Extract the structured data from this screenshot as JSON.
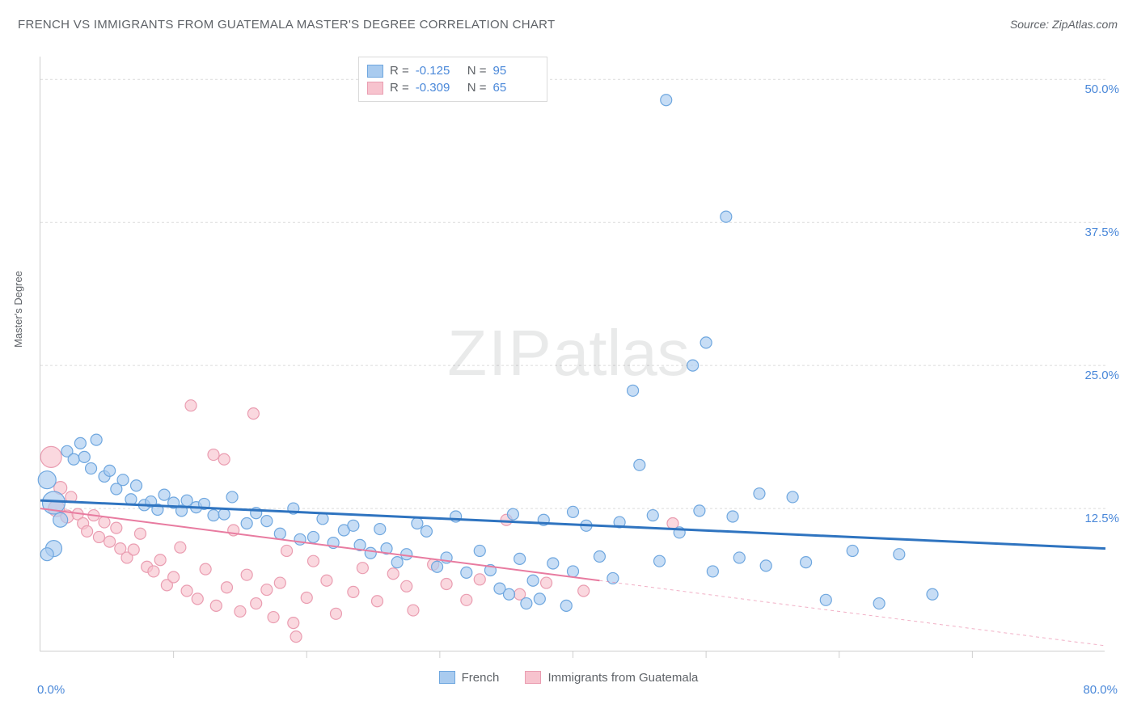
{
  "title": "FRENCH VS IMMIGRANTS FROM GUATEMALA MASTER'S DEGREE CORRELATION CHART",
  "source": "Source: ZipAtlas.com",
  "watermark_bold": "ZIP",
  "watermark_rest": "atlas",
  "chart": {
    "type": "scatter",
    "ylabel": "Master's Degree",
    "xlim": [
      0,
      80
    ],
    "ylim": [
      0,
      52
    ],
    "ytick_positions": [
      12.5,
      25,
      37.5,
      50
    ],
    "ytick_labels": [
      "12.5%",
      "25.0%",
      "37.5%",
      "50.0%"
    ],
    "xtick_positions": [
      10,
      20,
      30,
      40,
      50,
      60,
      70
    ],
    "x_start_label": "0.0%",
    "x_end_label": "80.0%",
    "background_color": "#ffffff",
    "grid_color": "#dcdcdc",
    "axis_color": "#cfcfcf",
    "axis_label_color": "#4a88d9",
    "text_color": "#5f6368",
    "series": [
      {
        "name": "French",
        "color_fill": "#a9cbef",
        "color_stroke": "#6fa7df",
        "line_color": "#2f74c0",
        "line_width": 3,
        "R": "-0.125",
        "N": "95",
        "trend": {
          "x1": 0,
          "y1": 13.2,
          "x2": 80,
          "y2": 9.0,
          "solid_until_x": 80
        },
        "points": [
          {
            "x": 0.5,
            "y": 15.0,
            "r": 11
          },
          {
            "x": 1.0,
            "y": 13.0,
            "r": 14
          },
          {
            "x": 1.5,
            "y": 11.5,
            "r": 9
          },
          {
            "x": 2.0,
            "y": 17.5,
            "r": 7
          },
          {
            "x": 2.5,
            "y": 16.8,
            "r": 7
          },
          {
            "x": 3.0,
            "y": 18.2,
            "r": 7
          },
          {
            "x": 3.3,
            "y": 17.0,
            "r": 7
          },
          {
            "x": 3.8,
            "y": 16.0,
            "r": 7
          },
          {
            "x": 4.2,
            "y": 18.5,
            "r": 7
          },
          {
            "x": 4.8,
            "y": 15.3,
            "r": 7
          },
          {
            "x": 5.2,
            "y": 15.8,
            "r": 7
          },
          {
            "x": 5.7,
            "y": 14.2,
            "r": 7
          },
          {
            "x": 1.0,
            "y": 9.0,
            "r": 10
          },
          {
            "x": 0.5,
            "y": 8.5,
            "r": 8
          },
          {
            "x": 6.2,
            "y": 15.0,
            "r": 7
          },
          {
            "x": 6.8,
            "y": 13.3,
            "r": 7
          },
          {
            "x": 7.2,
            "y": 14.5,
            "r": 7
          },
          {
            "x": 7.8,
            "y": 12.8,
            "r": 7
          },
          {
            "x": 8.3,
            "y": 13.1,
            "r": 7
          },
          {
            "x": 8.8,
            "y": 12.4,
            "r": 7
          },
          {
            "x": 9.3,
            "y": 13.7,
            "r": 7
          },
          {
            "x": 10.0,
            "y": 13.0,
            "r": 7
          },
          {
            "x": 10.6,
            "y": 12.3,
            "r": 7
          },
          {
            "x": 11.0,
            "y": 13.2,
            "r": 7
          },
          {
            "x": 11.7,
            "y": 12.6,
            "r": 7
          },
          {
            "x": 12.3,
            "y": 12.9,
            "r": 7
          },
          {
            "x": 13.0,
            "y": 11.9,
            "r": 7
          },
          {
            "x": 13.8,
            "y": 12.0,
            "r": 7
          },
          {
            "x": 14.4,
            "y": 13.5,
            "r": 7
          },
          {
            "x": 15.5,
            "y": 11.2,
            "r": 7
          },
          {
            "x": 16.2,
            "y": 12.1,
            "r": 7
          },
          {
            "x": 17.0,
            "y": 11.4,
            "r": 7
          },
          {
            "x": 18.0,
            "y": 10.3,
            "r": 7
          },
          {
            "x": 19.0,
            "y": 12.5,
            "r": 7
          },
          {
            "x": 19.5,
            "y": 9.8,
            "r": 7
          },
          {
            "x": 20.5,
            "y": 10.0,
            "r": 7
          },
          {
            "x": 21.2,
            "y": 11.6,
            "r": 7
          },
          {
            "x": 22.0,
            "y": 9.5,
            "r": 7
          },
          {
            "x": 22.8,
            "y": 10.6,
            "r": 7
          },
          {
            "x": 23.5,
            "y": 11.0,
            "r": 7
          },
          {
            "x": 24.0,
            "y": 9.3,
            "r": 7
          },
          {
            "x": 24.8,
            "y": 8.6,
            "r": 7
          },
          {
            "x": 25.5,
            "y": 10.7,
            "r": 7
          },
          {
            "x": 26.0,
            "y": 9.0,
            "r": 7
          },
          {
            "x": 26.8,
            "y": 7.8,
            "r": 7
          },
          {
            "x": 27.5,
            "y": 8.5,
            "r": 7
          },
          {
            "x": 28.3,
            "y": 11.2,
            "r": 7
          },
          {
            "x": 29.0,
            "y": 10.5,
            "r": 7
          },
          {
            "x": 29.8,
            "y": 7.4,
            "r": 7
          },
          {
            "x": 30.5,
            "y": 8.2,
            "r": 7
          },
          {
            "x": 31.2,
            "y": 11.8,
            "r": 7
          },
          {
            "x": 32.0,
            "y": 6.9,
            "r": 7
          },
          {
            "x": 33.0,
            "y": 8.8,
            "r": 7
          },
          {
            "x": 33.8,
            "y": 7.1,
            "r": 7
          },
          {
            "x": 34.5,
            "y": 5.5,
            "r": 7
          },
          {
            "x": 35.2,
            "y": 5.0,
            "r": 7
          },
          {
            "x": 35.5,
            "y": 12.0,
            "r": 7
          },
          {
            "x": 36.0,
            "y": 8.1,
            "r": 7
          },
          {
            "x": 36.5,
            "y": 4.2,
            "r": 7
          },
          {
            "x": 37.0,
            "y": 6.2,
            "r": 7
          },
          {
            "x": 37.5,
            "y": 4.6,
            "r": 7
          },
          {
            "x": 37.8,
            "y": 11.5,
            "r": 7
          },
          {
            "x": 38.5,
            "y": 7.7,
            "r": 7
          },
          {
            "x": 39.5,
            "y": 4.0,
            "r": 7
          },
          {
            "x": 40.0,
            "y": 7.0,
            "r": 7
          },
          {
            "x": 40.0,
            "y": 12.2,
            "r": 7
          },
          {
            "x": 41.0,
            "y": 11.0,
            "r": 7
          },
          {
            "x": 42.0,
            "y": 8.3,
            "r": 7
          },
          {
            "x": 43.0,
            "y": 6.4,
            "r": 7
          },
          {
            "x": 43.5,
            "y": 11.3,
            "r": 7
          },
          {
            "x": 44.5,
            "y": 22.8,
            "r": 7
          },
          {
            "x": 45.0,
            "y": 16.3,
            "r": 7
          },
          {
            "x": 46.0,
            "y": 11.9,
            "r": 7
          },
          {
            "x": 46.5,
            "y": 7.9,
            "r": 7
          },
          {
            "x": 47.0,
            "y": 48.2,
            "r": 7
          },
          {
            "x": 48.0,
            "y": 10.4,
            "r": 7
          },
          {
            "x": 49.0,
            "y": 25.0,
            "r": 7
          },
          {
            "x": 49.5,
            "y": 12.3,
            "r": 7
          },
          {
            "x": 50.0,
            "y": 27.0,
            "r": 7
          },
          {
            "x": 50.5,
            "y": 7.0,
            "r": 7
          },
          {
            "x": 51.5,
            "y": 38.0,
            "r": 7
          },
          {
            "x": 52.0,
            "y": 11.8,
            "r": 7
          },
          {
            "x": 52.5,
            "y": 8.2,
            "r": 7
          },
          {
            "x": 54.0,
            "y": 13.8,
            "r": 7
          },
          {
            "x": 54.5,
            "y": 7.5,
            "r": 7
          },
          {
            "x": 56.5,
            "y": 13.5,
            "r": 7
          },
          {
            "x": 57.5,
            "y": 7.8,
            "r": 7
          },
          {
            "x": 59.0,
            "y": 4.5,
            "r": 7
          },
          {
            "x": 61.0,
            "y": 8.8,
            "r": 7
          },
          {
            "x": 63.0,
            "y": 4.2,
            "r": 7
          },
          {
            "x": 64.5,
            "y": 8.5,
            "r": 7
          },
          {
            "x": 67.0,
            "y": 5.0,
            "r": 7
          }
        ]
      },
      {
        "name": "Immigrants from Guatemala",
        "color_fill": "#f7c3ce",
        "color_stroke": "#ea9db1",
        "line_color": "#e87ba0",
        "line_width": 2,
        "R": "-0.309",
        "N": "65",
        "trend": {
          "x1": 0,
          "y1": 12.5,
          "x2": 80,
          "y2": 0.5,
          "solid_until_x": 42
        },
        "points": [
          {
            "x": 0.8,
            "y": 17.0,
            "r": 13
          },
          {
            "x": 1.2,
            "y": 12.5,
            "r": 10
          },
          {
            "x": 1.5,
            "y": 14.3,
            "r": 8
          },
          {
            "x": 2.0,
            "y": 11.8,
            "r": 8
          },
          {
            "x": 2.3,
            "y": 13.5,
            "r": 7
          },
          {
            "x": 2.8,
            "y": 12.0,
            "r": 7
          },
          {
            "x": 3.2,
            "y": 11.2,
            "r": 7
          },
          {
            "x": 3.5,
            "y": 10.5,
            "r": 7
          },
          {
            "x": 4.0,
            "y": 11.9,
            "r": 7
          },
          {
            "x": 4.4,
            "y": 10.0,
            "r": 7
          },
          {
            "x": 4.8,
            "y": 11.3,
            "r": 7
          },
          {
            "x": 5.2,
            "y": 9.6,
            "r": 7
          },
          {
            "x": 5.7,
            "y": 10.8,
            "r": 7
          },
          {
            "x": 6.0,
            "y": 9.0,
            "r": 7
          },
          {
            "x": 6.5,
            "y": 8.2,
            "r": 7
          },
          {
            "x": 7.0,
            "y": 8.9,
            "r": 7
          },
          {
            "x": 7.5,
            "y": 10.3,
            "r": 7
          },
          {
            "x": 8.0,
            "y": 7.4,
            "r": 7
          },
          {
            "x": 8.5,
            "y": 7.0,
            "r": 7
          },
          {
            "x": 9.0,
            "y": 8.0,
            "r": 7
          },
          {
            "x": 9.5,
            "y": 5.8,
            "r": 7
          },
          {
            "x": 10.0,
            "y": 6.5,
            "r": 7
          },
          {
            "x": 10.5,
            "y": 9.1,
            "r": 7
          },
          {
            "x": 11.0,
            "y": 5.3,
            "r": 7
          },
          {
            "x": 11.3,
            "y": 21.5,
            "r": 7
          },
          {
            "x": 11.8,
            "y": 4.6,
            "r": 7
          },
          {
            "x": 12.4,
            "y": 7.2,
            "r": 7
          },
          {
            "x": 13.0,
            "y": 17.2,
            "r": 7
          },
          {
            "x": 13.2,
            "y": 4.0,
            "r": 7
          },
          {
            "x": 13.8,
            "y": 16.8,
            "r": 7
          },
          {
            "x": 14.0,
            "y": 5.6,
            "r": 7
          },
          {
            "x": 14.5,
            "y": 10.6,
            "r": 7
          },
          {
            "x": 15.0,
            "y": 3.5,
            "r": 7
          },
          {
            "x": 15.5,
            "y": 6.7,
            "r": 7
          },
          {
            "x": 16.0,
            "y": 20.8,
            "r": 7
          },
          {
            "x": 16.2,
            "y": 4.2,
            "r": 7
          },
          {
            "x": 17.0,
            "y": 5.4,
            "r": 7
          },
          {
            "x": 17.5,
            "y": 3.0,
            "r": 7
          },
          {
            "x": 18.0,
            "y": 6.0,
            "r": 7
          },
          {
            "x": 18.5,
            "y": 8.8,
            "r": 7
          },
          {
            "x": 19.0,
            "y": 2.5,
            "r": 7
          },
          {
            "x": 19.2,
            "y": 1.3,
            "r": 7
          },
          {
            "x": 20.0,
            "y": 4.7,
            "r": 7
          },
          {
            "x": 20.5,
            "y": 7.9,
            "r": 7
          },
          {
            "x": 21.5,
            "y": 6.2,
            "r": 7
          },
          {
            "x": 22.2,
            "y": 3.3,
            "r": 7
          },
          {
            "x": 23.5,
            "y": 5.2,
            "r": 7
          },
          {
            "x": 24.2,
            "y": 7.3,
            "r": 7
          },
          {
            "x": 25.3,
            "y": 4.4,
            "r": 7
          },
          {
            "x": 26.5,
            "y": 6.8,
            "r": 7
          },
          {
            "x": 27.5,
            "y": 5.7,
            "r": 7
          },
          {
            "x": 28.0,
            "y": 3.6,
            "r": 7
          },
          {
            "x": 29.5,
            "y": 7.6,
            "r": 7
          },
          {
            "x": 30.5,
            "y": 5.9,
            "r": 7
          },
          {
            "x": 32.0,
            "y": 4.5,
            "r": 7
          },
          {
            "x": 33.0,
            "y": 6.3,
            "r": 7
          },
          {
            "x": 35.0,
            "y": 11.5,
            "r": 7
          },
          {
            "x": 36.0,
            "y": 5.0,
            "r": 7
          },
          {
            "x": 38.0,
            "y": 6.0,
            "r": 7
          },
          {
            "x": 40.8,
            "y": 5.3,
            "r": 7
          },
          {
            "x": 47.5,
            "y": 11.2,
            "r": 7
          }
        ]
      }
    ]
  },
  "legend_bottom": [
    {
      "label": "French",
      "fill": "#a9cbef",
      "stroke": "#6fa7df"
    },
    {
      "label": "Immigrants from Guatemala",
      "fill": "#f7c3ce",
      "stroke": "#ea9db1"
    }
  ]
}
